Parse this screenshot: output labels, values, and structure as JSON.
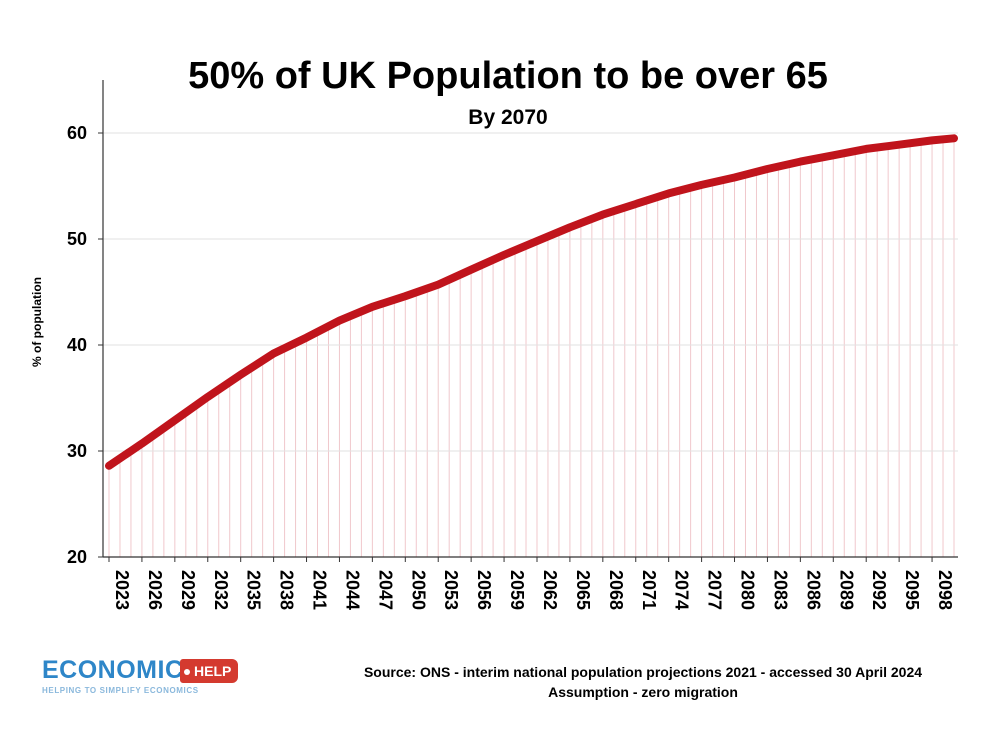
{
  "chart_data": {
    "type": "line",
    "title": "50% of UK Population to be over 65",
    "subtitle": "By 2070",
    "ylabel": "% of population",
    "xlabel": "",
    "ylim": [
      20,
      65
    ],
    "yticks": [
      20,
      30,
      40,
      50,
      60
    ],
    "x_tick_labels": [
      "2023",
      "2026",
      "2029",
      "2032",
      "2035",
      "2038",
      "2041",
      "2044",
      "2047",
      "2050",
      "2053",
      "2056",
      "2059",
      "2062",
      "2065",
      "2068",
      "2071",
      "2074",
      "2077",
      "2080",
      "2083",
      "2086",
      "2089",
      "2092",
      "2095",
      "2098"
    ],
    "grid": true,
    "line_color": "#c0141c",
    "gridline_color": "#f0c8cc",
    "series": [
      {
        "x": [
          2023,
          2026,
          2029,
          2032,
          2035,
          2038,
          2041,
          2044,
          2047,
          2050,
          2053,
          2056,
          2059,
          2062,
          2065,
          2068,
          2071,
          2074,
          2077,
          2080,
          2083,
          2086,
          2089,
          2092,
          2095,
          2098,
          2100
        ],
        "values": [
          28.6,
          30.7,
          32.9,
          35.1,
          37.2,
          39.2,
          40.7,
          42.3,
          43.6,
          44.6,
          45.7,
          47.1,
          48.5,
          49.8,
          51.1,
          52.3,
          53.3,
          54.3,
          55.1,
          55.8,
          56.6,
          57.3,
          57.9,
          58.5,
          58.9,
          59.3,
          59.5
        ]
      }
    ]
  },
  "logo": {
    "word": "ECONOMICS",
    "tag": "HELP",
    "strap": "HELPING TO SIMPLIFY ECONOMICS"
  },
  "source_note": {
    "line1": "Source: ONS -  interim national population projections 2021 - accessed 30 April 2024",
    "line2": "Assumption - zero migration"
  }
}
